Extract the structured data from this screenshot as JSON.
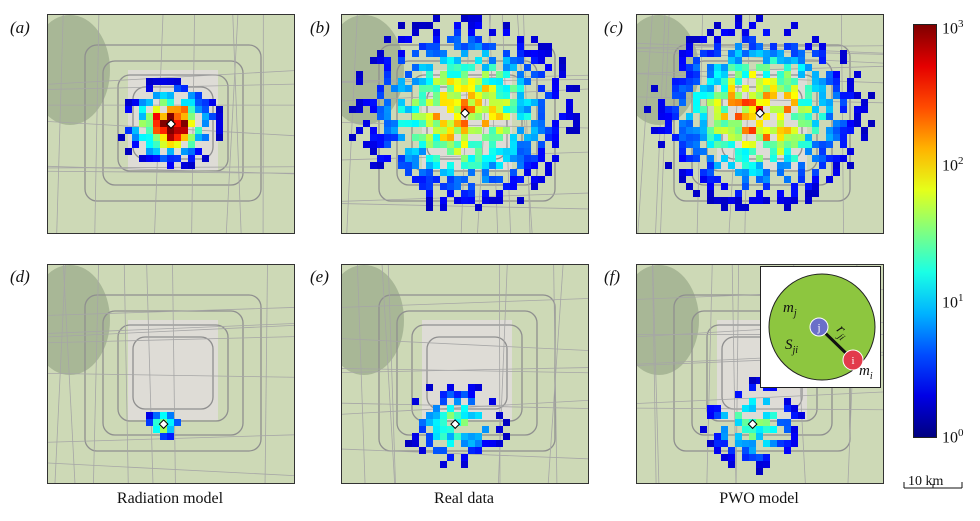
{
  "panels": [
    {
      "label": "(a)",
      "center": [
        0.5,
        0.5
      ],
      "spread": 0.12,
      "peak": 1.0,
      "density": 0.95
    },
    {
      "label": "(b)",
      "center": [
        0.5,
        0.45
      ],
      "spread": 0.28,
      "peak": 0.7,
      "density": 0.75
    },
    {
      "label": "(c)",
      "center": [
        0.5,
        0.45
      ],
      "spread": 0.27,
      "peak": 0.75,
      "density": 0.8
    },
    {
      "label": "(d)",
      "center": [
        0.47,
        0.73
      ],
      "spread": 0.05,
      "peak": 0.6,
      "density": 0.95
    },
    {
      "label": "(e)",
      "center": [
        0.46,
        0.73
      ],
      "spread": 0.14,
      "peak": 0.45,
      "density": 0.55
    },
    {
      "label": "(f)",
      "center": [
        0.47,
        0.73
      ],
      "spread": 0.14,
      "peak": 0.5,
      "density": 0.6
    }
  ],
  "captions": {
    "radiation": "Radiation model",
    "real": "Real data",
    "pwo": "PWO model"
  },
  "colorbar": {
    "base": "10",
    "tick_top_exp": "3",
    "tick_2_exp": "2",
    "tick_1_exp": "1",
    "tick_0_exp": "0",
    "scale": "log"
  },
  "scalebar": {
    "label": "10 km"
  },
  "inset": {
    "m_j": "m",
    "m_j_sub": "j",
    "m_i": "m",
    "m_i_sub": "i",
    "r_ji": "r",
    "r_ji_sub": "ji",
    "s_ji": "S",
    "s_ji_sub": "ji",
    "node_j": "j",
    "node_i": "i",
    "disk_color": "#8dc63f",
    "node_j_color": "#6a6fc9",
    "node_i_color": "#e23b4b"
  }
}
